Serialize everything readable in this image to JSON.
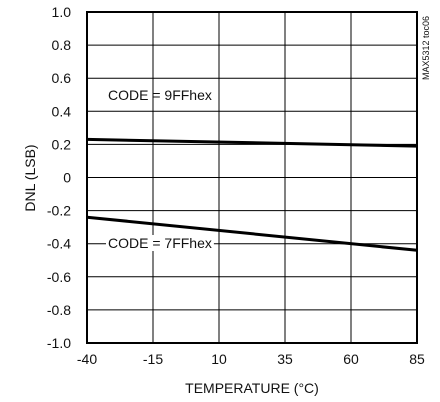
{
  "chart_data": {
    "type": "line",
    "xlabel": "TEMPERATURE (°C)",
    "ylabel": "DNL (LSB)",
    "xlim": [
      -40,
      85
    ],
    "ylim": [
      -1.0,
      1.0
    ],
    "x_ticks": [
      "-40",
      "-15",
      "10",
      "35",
      "60",
      "85"
    ],
    "y_ticks": [
      "1.0",
      "0.8",
      "0.6",
      "0.4",
      "0.2",
      "0",
      "-0.2",
      "-0.4",
      "-0.6",
      "-0.8",
      "-1.0"
    ],
    "grid": true,
    "series": [
      {
        "name": "CODE = 9FFhex",
        "x": [
          -40,
          85
        ],
        "y": [
          0.23,
          0.19
        ]
      },
      {
        "name": "CODE = 7FFhex",
        "x": [
          -40,
          85
        ],
        "y": [
          -0.24,
          -0.44
        ]
      }
    ],
    "annotations": [
      "CODE = 9FFhex",
      "CODE = 7FFhex"
    ],
    "side_label": "MAX5312 toc06"
  }
}
